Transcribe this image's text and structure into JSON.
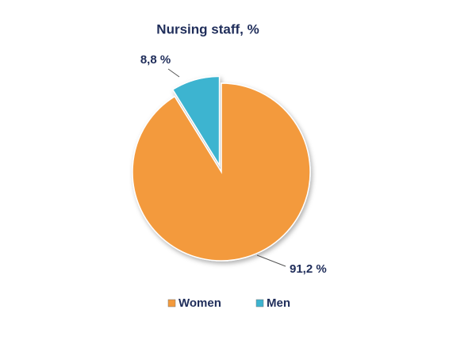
{
  "chart_data": {
    "type": "pie",
    "title": "Nursing staff, %",
    "categories": [
      "Women",
      "Men"
    ],
    "values": [
      91.2,
      8.8
    ],
    "value_labels": [
      "91,2 %",
      "8,8 %"
    ],
    "colors": [
      "#f39a3c",
      "#3db4d0"
    ],
    "exploded": [
      false,
      true
    ],
    "legend": "bottom"
  }
}
